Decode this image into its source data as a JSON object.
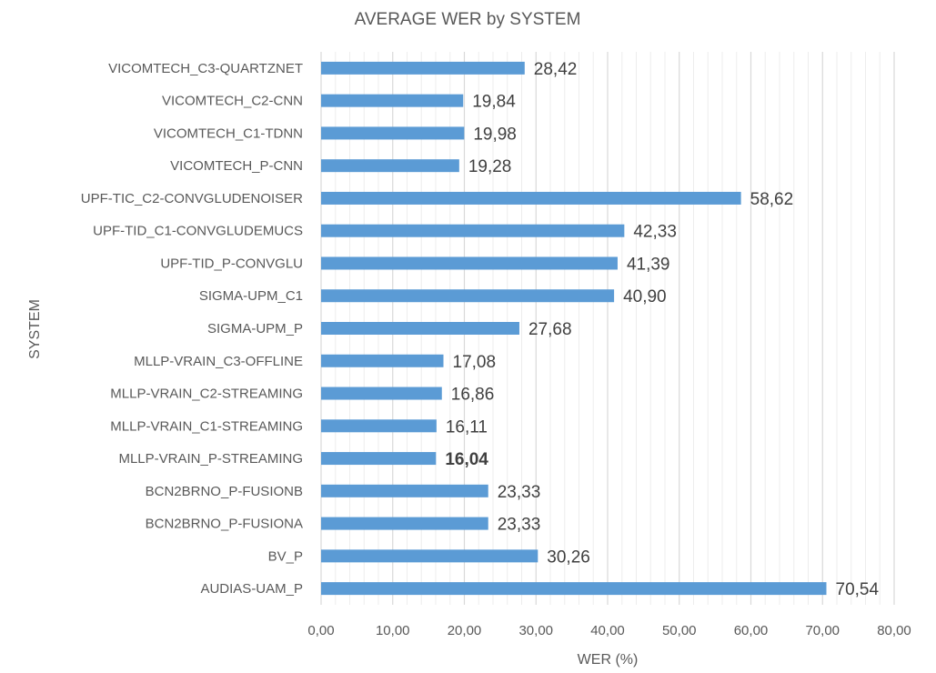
{
  "chart_data": {
    "type": "bar",
    "orientation": "horizontal",
    "title": "AVERAGE WER by  SYSTEM",
    "xlabel": "WER (%)",
    "ylabel": "SYSTEM",
    "xlim": [
      0,
      80
    ],
    "x_ticks": [
      "0,00",
      "10,00",
      "20,00",
      "30,00",
      "40,00",
      "50,00",
      "60,00",
      "70,00",
      "80,00"
    ],
    "grid": "vertical major and minor",
    "legend": "none",
    "bar_color": "#5b9bd5",
    "categories": [
      "VICOMTECH_C3-QUARTZNET",
      "VICOMTECH_C2-CNN",
      "VICOMTECH_C1-TDNN",
      "VICOMTECH_P-CNN",
      "UPF-TIC_C2-CONVGLUDENOISER",
      "UPF-TID_C1-CONVGLUDEMUCS",
      "UPF-TID_P-CONVGLU",
      "SIGMA-UPM_C1",
      "SIGMA-UPM_P",
      "MLLP-VRAIN_C3-OFFLINE",
      "MLLP-VRAIN_C2-STREAMING",
      "MLLP-VRAIN_C1-STREAMING",
      "MLLP-VRAIN_P-STREAMING",
      "BCN2BRNO_P-FUSIONB",
      "BCN2BRNO_P-FUSIONA",
      "BV_P",
      "AUDIAS-UAM_P"
    ],
    "values": [
      28.42,
      19.84,
      19.98,
      19.28,
      58.62,
      42.33,
      41.39,
      40.9,
      27.68,
      17.08,
      16.86,
      16.11,
      16.04,
      23.33,
      23.33,
      30.26,
      70.54
    ],
    "data_labels": [
      "28,42",
      "19,84",
      "19,98",
      "19,28",
      "58,62",
      "42,33",
      "41,39",
      "40,90",
      "27,68",
      "17,08",
      "16,86",
      "16,11",
      "16,04",
      "23,33",
      "23,33",
      "30,26",
      "70,54"
    ],
    "bold_label": "16,04"
  }
}
